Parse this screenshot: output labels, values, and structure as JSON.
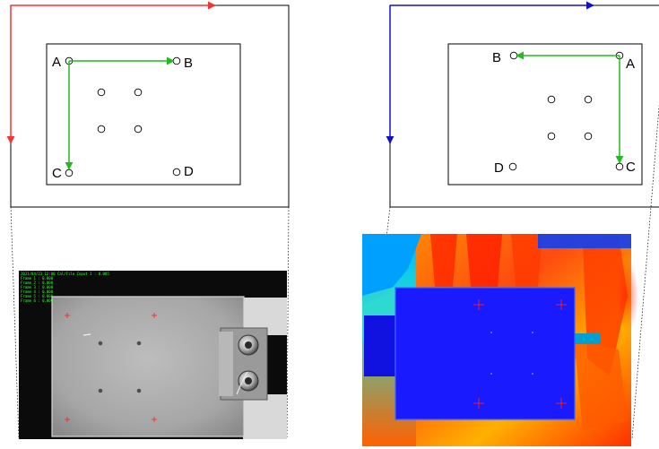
{
  "left_panel": {
    "labels": {
      "a": "A",
      "b": "B",
      "c": "C",
      "d": "D"
    },
    "axis_colors": {
      "horizontal": "#ff3030",
      "vertical": "#ff3030"
    },
    "arrow_color": "#22bb22",
    "overlay_text": [
      "2021/04/23 12:00 Cal/File Input 1 : 0.005",
      "Frame 1 : 0.000",
      "Frame 2 : 0.000",
      "Frame 3 : 0.000",
      "Frame 4 : 0.000",
      "Frame 5 : 0.000",
      "Frame 6 : 0.000"
    ]
  },
  "right_panel": {
    "labels": {
      "a": "A",
      "b": "B",
      "c": "C",
      "d": "D"
    },
    "axis_colors": {
      "horizontal": "#1010cc",
      "vertical": "#1010cc"
    },
    "arrow_color": "#22bb22"
  }
}
